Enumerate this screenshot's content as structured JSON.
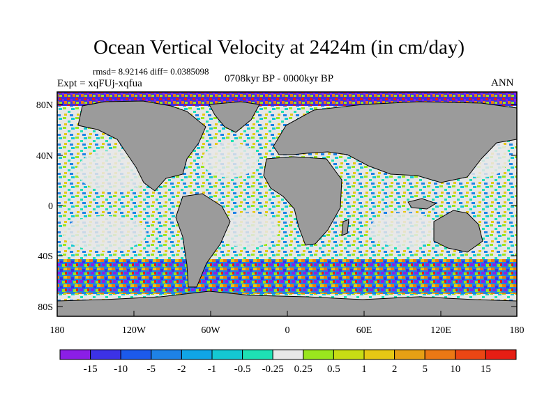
{
  "title": "Ocean Vertical Velocity at 2424m (in cm/day)",
  "stats": "rmsd= 8.92146 diff= 0.0385098",
  "experiment": "Expt = xqFUj-xqfua",
  "period": "0708kyr BP - 0000kyr BP",
  "season": "ANN",
  "lat_ticks": [
    "80N",
    "40N",
    "0",
    "40S",
    "80S"
  ],
  "lon_ticks": [
    "180",
    "120W",
    "60W",
    "0",
    "60E",
    "120E",
    "180"
  ],
  "land_color": "#9b9b9b",
  "colorbar": {
    "colors": [
      "#8b1ee6",
      "#3c32e6",
      "#1c5aeb",
      "#1e82e6",
      "#10a5e6",
      "#14c8d2",
      "#1ee1b4",
      "#e8e8e8",
      "#9ae61e",
      "#c8dc14",
      "#e6c814",
      "#e6a014",
      "#eb7814",
      "#eb4614",
      "#e61e14"
    ],
    "labels": [
      "-15",
      "-10",
      "-5",
      "-2",
      "-1",
      "-0.5",
      "-0.25",
      "0.25",
      "0.5",
      "1",
      "2",
      "5",
      "10",
      "15"
    ]
  }
}
